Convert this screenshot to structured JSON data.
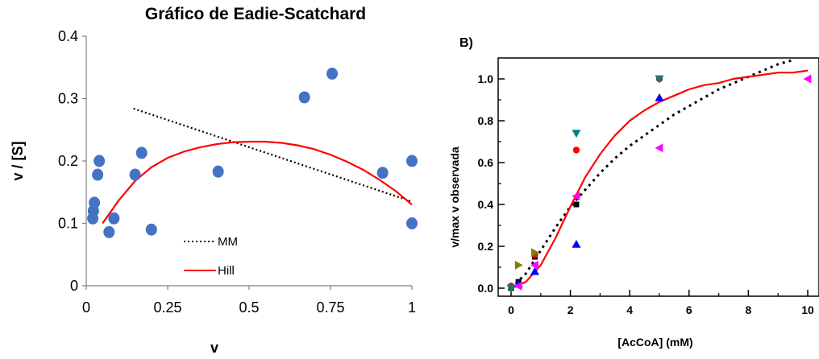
{
  "chart_data": [
    {
      "type": "scatter",
      "title": "Gráfico de Eadie-Scatchard",
      "xlabel": "v",
      "ylabel": "v / [S]",
      "xlim": [
        0,
        1
      ],
      "ylim": [
        0,
        0.4
      ],
      "xticks": [
        "0",
        "0.25",
        "0.5",
        "0.75",
        "1"
      ],
      "yticks": [
        "0",
        "0.1",
        "0.2",
        "0.3",
        "0.4"
      ],
      "grid": false,
      "legend_position": "bottom-center",
      "points_color": "#4472c4",
      "points": [
        {
          "x": 0.02,
          "y": 0.108
        },
        {
          "x": 0.022,
          "y": 0.12
        },
        {
          "x": 0.025,
          "y": 0.133
        },
        {
          "x": 0.035,
          "y": 0.178
        },
        {
          "x": 0.04,
          "y": 0.2
        },
        {
          "x": 0.07,
          "y": 0.086
        },
        {
          "x": 0.085,
          "y": 0.108
        },
        {
          "x": 0.15,
          "y": 0.178
        },
        {
          "x": 0.17,
          "y": 0.213
        },
        {
          "x": 0.2,
          "y": 0.09
        },
        {
          "x": 0.405,
          "y": 0.183
        },
        {
          "x": 0.67,
          "y": 0.302
        },
        {
          "x": 0.755,
          "y": 0.34
        },
        {
          "x": 0.91,
          "y": 0.181
        },
        {
          "x": 1.0,
          "y": 0.2
        },
        {
          "x": 1.0,
          "y": 0.1
        }
      ],
      "series": [
        {
          "name": "MM",
          "style": "dotted",
          "color": "#000000",
          "x": [
            0.145,
            1.0
          ],
          "y": [
            0.284,
            0.135
          ]
        },
        {
          "name": "Hill",
          "style": "solid",
          "color": "#ff0000",
          "x": [
            0.05,
            0.1,
            0.15,
            0.2,
            0.25,
            0.3,
            0.35,
            0.4,
            0.45,
            0.5,
            0.55,
            0.6,
            0.65,
            0.7,
            0.75,
            0.8,
            0.85,
            0.9,
            0.95,
            1.0
          ],
          "y": [
            0.1,
            0.137,
            0.168,
            0.19,
            0.205,
            0.215,
            0.222,
            0.227,
            0.23,
            0.231,
            0.231,
            0.229,
            0.225,
            0.219,
            0.21,
            0.199,
            0.186,
            0.17,
            0.152,
            0.13
          ]
        }
      ]
    },
    {
      "type": "scatter",
      "panel_label": "B)",
      "xlabel": "[AcCoA] (mM)",
      "ylabel": "v/max v observada",
      "xlim": [
        0,
        10
      ],
      "ylim": [
        0,
        1.0
      ],
      "xticks": [
        "0",
        "2",
        "4",
        "6",
        "8",
        "10"
      ],
      "yticks": [
        "0.0",
        "0.2",
        "0.4",
        "0.6",
        "0.8",
        "1.0"
      ],
      "grid": false,
      "marker_colors": {
        "square": "#000000",
        "circle": "#ff0000",
        "triangle_up": "#0000ff",
        "triangle_down": "#008080",
        "triangle_left": "#ff00ff",
        "triangle_right": "#808000"
      },
      "points": [
        {
          "x": 0,
          "y": 0.0,
          "marker": "square"
        },
        {
          "x": 0.25,
          "y": 0.03,
          "marker": "square"
        },
        {
          "x": 0.8,
          "y": 0.15,
          "marker": "square"
        },
        {
          "x": 2.2,
          "y": 0.4,
          "marker": "square"
        },
        {
          "x": 0,
          "y": 0.01,
          "marker": "circle"
        },
        {
          "x": 0.8,
          "y": 0.16,
          "marker": "circle"
        },
        {
          "x": 2.2,
          "y": 0.66,
          "marker": "circle"
        },
        {
          "x": 5,
          "y": 1.0,
          "marker": "circle"
        },
        {
          "x": 0.25,
          "y": 0.02,
          "marker": "triangle_up"
        },
        {
          "x": 0.8,
          "y": 0.08,
          "marker": "triangle_up"
        },
        {
          "x": 2.2,
          "y": 0.21,
          "marker": "triangle_up"
        },
        {
          "x": 5,
          "y": 0.91,
          "marker": "triangle_up"
        },
        {
          "x": 0,
          "y": 0.0,
          "marker": "triangle_down"
        },
        {
          "x": 2.2,
          "y": 0.74,
          "marker": "triangle_down"
        },
        {
          "x": 5,
          "y": 1.0,
          "marker": "triangle_down"
        },
        {
          "x": 0.25,
          "y": 0.01,
          "marker": "triangle_left"
        },
        {
          "x": 0.8,
          "y": 0.11,
          "marker": "triangle_left"
        },
        {
          "x": 2.2,
          "y": 0.44,
          "marker": "triangle_left"
        },
        {
          "x": 5,
          "y": 0.67,
          "marker": "triangle_left"
        },
        {
          "x": 10,
          "y": 1.0,
          "marker": "triangle_left"
        },
        {
          "x": 0.25,
          "y": 0.11,
          "marker": "triangle_right"
        },
        {
          "x": 0.8,
          "y": 0.17,
          "marker": "triangle_right"
        }
      ],
      "series": [
        {
          "style": "dotted",
          "color": "#000000",
          "x": [
            0,
            0.5,
            1,
            1.5,
            2,
            2.5,
            3,
            3.5,
            4,
            4.5,
            5,
            5.5,
            6,
            6.5,
            7,
            7.5,
            8,
            8.5,
            9,
            9.5
          ],
          "y": [
            0.0,
            0.07,
            0.18,
            0.29,
            0.39,
            0.47,
            0.55,
            0.62,
            0.68,
            0.73,
            0.78,
            0.83,
            0.87,
            0.91,
            0.95,
            0.98,
            1.01,
            1.04,
            1.07,
            1.09
          ]
        },
        {
          "style": "solid",
          "color": "#ff0000",
          "x": [
            0,
            0.5,
            1,
            1.5,
            2,
            2.5,
            3,
            3.5,
            4,
            4.5,
            5,
            5.5,
            6,
            6.5,
            7,
            7.5,
            8,
            8.5,
            9,
            9.5,
            10
          ],
          "y": [
            0.0,
            0.03,
            0.11,
            0.24,
            0.39,
            0.53,
            0.64,
            0.73,
            0.8,
            0.85,
            0.89,
            0.92,
            0.95,
            0.97,
            0.98,
            1.0,
            1.01,
            1.02,
            1.03,
            1.03,
            1.04
          ]
        }
      ]
    }
  ]
}
